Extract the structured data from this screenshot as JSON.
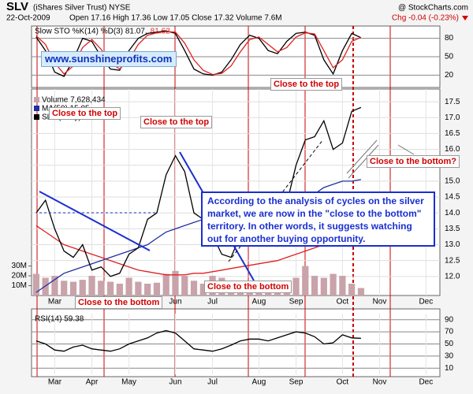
{
  "header": {
    "symbol": "SLV",
    "name": "(iShares Silver Trust) NYSE",
    "source": "@ StockCharts.com",
    "date": "22-Oct-2009",
    "quote": "Open 17.16 High 17.36 Low 17.05 Close 17.32 Volume 7.6M",
    "change": "Chg -0.04 (-0.23%)"
  },
  "chart_data": [
    {
      "type": "line",
      "title": "Slow STO %K(14) %D(3) 81.07,",
      "subtitle": "81.62",
      "ylim": [
        0,
        100
      ],
      "yticks": [
        20,
        50,
        80
      ],
      "grid": true,
      "series": [
        {
          "color": "#000000",
          "values": [
            82,
            60,
            25,
            18,
            45,
            80,
            75,
            50,
            30,
            28,
            60,
            80,
            88,
            90,
            92,
            88,
            60,
            30,
            22,
            20,
            25,
            45,
            70,
            85,
            80,
            60,
            55,
            75,
            88,
            90,
            85,
            45,
            22,
            60,
            88,
            81.07,
            null,
            null,
            null,
            null,
            null,
            null,
            null,
            null
          ]
        },
        {
          "color": "#e02020",
          "values": [
            84,
            70,
            40,
            22,
            35,
            65,
            78,
            62,
            40,
            30,
            45,
            70,
            85,
            89,
            91,
            90,
            72,
            45,
            28,
            21,
            23,
            35,
            58,
            78,
            82,
            70,
            58,
            65,
            82,
            89,
            87,
            60,
            32,
            45,
            75,
            81.62,
            null,
            null,
            null,
            null,
            null,
            null,
            null,
            null
          ]
        }
      ]
    },
    {
      "type": "line",
      "categories": [
        null,
        null,
        "Mar",
        null,
        null,
        null,
        "Apr",
        null,
        null,
        null,
        "May",
        null,
        null,
        null,
        null,
        "Jun",
        null,
        null,
        null,
        "Jul",
        null,
        null,
        null,
        null,
        "Aug",
        null,
        null,
        null,
        "Sep",
        null,
        null,
        null,
        null,
        "Oct",
        null,
        null,
        null,
        "Nov",
        null,
        null,
        null,
        null,
        "Dec",
        null
      ],
      "ylim": [
        11.4,
        17.9
      ],
      "yticks": [
        {
          "value": 12,
          "label": "12.0"
        },
        12.5,
        {
          "value": 13,
          "label": "13.0"
        },
        13.5,
        {
          "value": 14,
          "label": "14.0"
        },
        14.5,
        {
          "value": 15,
          "label": "15.0"
        },
        15.5,
        {
          "value": 16,
          "label": "16.0"
        },
        16.5,
        {
          "value": 17,
          "label": "17.0"
        },
        17.5
      ],
      "y2lim": [
        0,
        210000000
      ],
      "y2ticks": [
        {
          "value": 10000000,
          "label": "10M"
        },
        {
          "value": 20000000,
          "label": "20M"
        },
        {
          "value": 30000000,
          "label": "30M"
        }
      ],
      "grid": true,
      "series": [
        {
          "name": "Volume 7,628,434",
          "type": "bar",
          "axis": "y2",
          "color": "#c9a3aa",
          "values": [
            22000000,
            18000000,
            20000000,
            15000000,
            14000000,
            16000000,
            20000000,
            15000000,
            14000000,
            12000000,
            18000000,
            14000000,
            12000000,
            13000000,
            22000000,
            25000000,
            20000000,
            15000000,
            12000000,
            20000000,
            18000000,
            14000000,
            12000000,
            10000000,
            10000000,
            11000000,
            10000000,
            12000000,
            18000000,
            30000000,
            20000000,
            18000000,
            22000000,
            20000000,
            12000000,
            7628434,
            null,
            null,
            null,
            null,
            null,
            null,
            null,
            null
          ]
        },
        {
          "color": "#e02020",
          "values": [
            13.6,
            13.4,
            13.2,
            13.0,
            12.9,
            12.8,
            12.7,
            12.6,
            12.5,
            12.4,
            12.3,
            12.2,
            12.15,
            12.1,
            12.05,
            12.05,
            12.05,
            12.1,
            12.1,
            12.15,
            12.2,
            12.25,
            12.3,
            12.35,
            12.4,
            12.45,
            12.5,
            12.6,
            12.7,
            12.8,
            12.9,
            13.0,
            13.1,
            13.2,
            13.3,
            13.4,
            null,
            null,
            null,
            null,
            null,
            null,
            null,
            null
          ]
        },
        {
          "name": "MA(50) 15.05",
          "color": "#2030a0",
          "values": [
            11.5,
            11.7,
            11.9,
            12.1,
            12.2,
            12.3,
            12.4,
            12.5,
            12.6,
            12.7,
            12.8,
            12.9,
            13.0,
            13.2,
            13.4,
            13.5,
            13.6,
            13.7,
            13.8,
            13.8,
            13.8,
            13.9,
            13.9,
            13.9,
            14.0,
            14.0,
            14.0,
            14.1,
            14.3,
            14.5,
            14.6,
            14.8,
            14.9,
            15.0,
            15.0,
            15.05,
            null,
            null,
            null,
            null,
            null,
            null,
            null,
            null
          ]
        },
        {
          "name": "SLV (Daily) 17.32",
          "color": "#000000",
          "values": [
            14.0,
            14.4,
            13.5,
            12.8,
            12.6,
            13.0,
            12.2,
            12.3,
            12.0,
            12.1,
            12.7,
            12.9,
            13.8,
            14.0,
            15.2,
            15.8,
            15.3,
            14.0,
            13.8,
            13.3,
            12.7,
            12.6,
            13.3,
            13.9,
            14.2,
            14.3,
            14.1,
            14.3,
            15.5,
            16.3,
            16.4,
            16.9,
            16.0,
            16.2,
            17.2,
            17.32,
            null,
            null,
            null,
            null,
            null,
            null,
            null,
            null
          ]
        }
      ]
    },
    {
      "type": "line",
      "title": "RSI(14) 59.38",
      "categories": [
        null,
        null,
        "Mar",
        null,
        null,
        null,
        "Apr",
        null,
        null,
        null,
        "May",
        null,
        null,
        null,
        null,
        "Jun",
        null,
        null,
        null,
        "Jul",
        null,
        null,
        null,
        null,
        "Aug",
        null,
        null,
        null,
        "Sep",
        null,
        null,
        null,
        null,
        "Oct",
        null,
        null,
        null,
        "Nov",
        null,
        null,
        null,
        null,
        "Dec",
        null
      ],
      "ylim": [
        0,
        100
      ],
      "yticks": [
        10,
        30,
        50,
        70,
        90
      ],
      "grid": true,
      "series": [
        {
          "color": "#000000",
          "values": [
            55,
            50,
            40,
            38,
            45,
            48,
            42,
            40,
            38,
            42,
            50,
            55,
            60,
            68,
            72,
            68,
            55,
            42,
            40,
            38,
            42,
            48,
            55,
            58,
            58,
            55,
            60,
            65,
            70,
            68,
            62,
            50,
            52,
            65,
            60,
            59.38,
            null,
            null,
            null,
            null,
            null,
            null,
            null,
            null
          ]
        }
      ]
    }
  ],
  "annotations": {
    "website": "www.sunshineprofits.com",
    "notes": [
      "Close to the top",
      "Close to the top",
      "Close to the top",
      "Close to the bottom",
      "Close to the bottom",
      "Close to the bottom?"
    ],
    "analysis": "According to the analysis of cycles on the silver market, we are now in the \"close to the bottom\" territory. In other words, it suggests watching out for another buying opportunity."
  }
}
